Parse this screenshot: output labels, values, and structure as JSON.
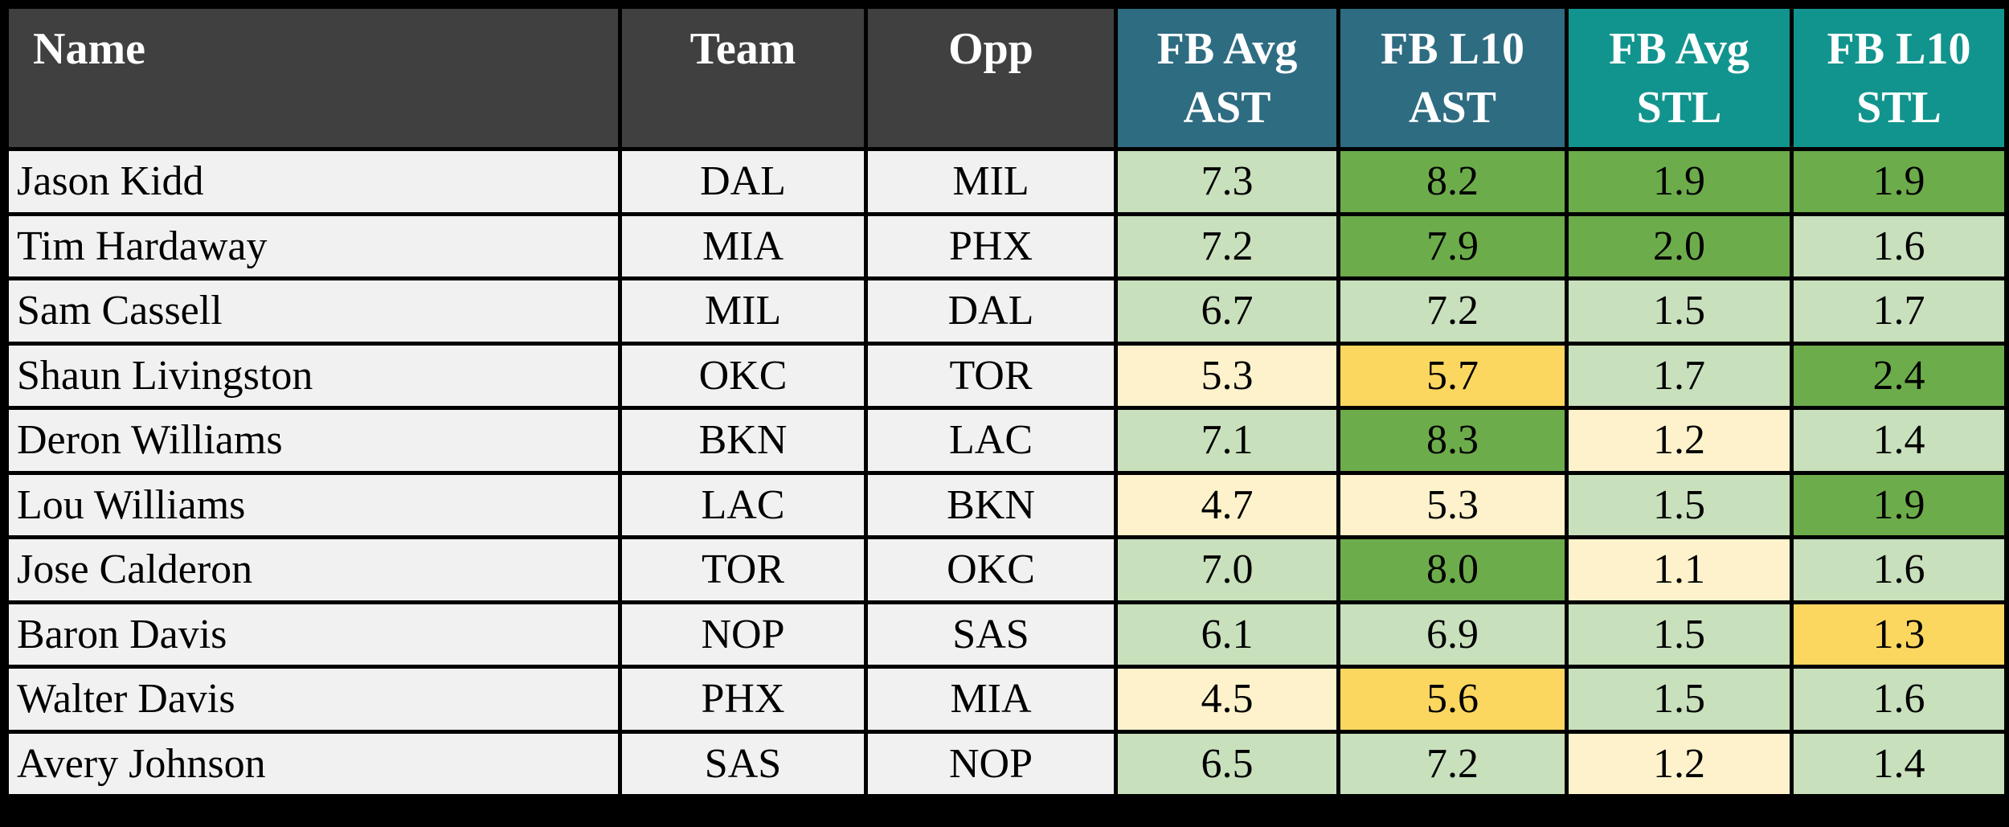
{
  "chart_data": {
    "type": "table",
    "columns": [
      {
        "key": "name",
        "label": "Name",
        "header_style": "dark"
      },
      {
        "key": "team",
        "label": "Team",
        "header_style": "dark"
      },
      {
        "key": "opp",
        "label": "Opp",
        "header_style": "dark"
      },
      {
        "key": "fb_avg_ast",
        "label": "FB Avg\nAST",
        "header_style": "ast"
      },
      {
        "key": "fb_l10_ast",
        "label": "FB L10\nAST",
        "header_style": "ast"
      },
      {
        "key": "fb_avg_stl",
        "label": "FB Avg\nSTL",
        "header_style": "stl"
      },
      {
        "key": "fb_l10_stl",
        "label": "FB L10\nSTL",
        "header_style": "stl"
      }
    ],
    "rows": [
      {
        "name": "Jason Kidd",
        "team": "DAL",
        "opp": "MIL",
        "stats": [
          {
            "value": "7.3",
            "tone": "light-green"
          },
          {
            "value": "8.2",
            "tone": "green"
          },
          {
            "value": "1.9",
            "tone": "green"
          },
          {
            "value": "1.9",
            "tone": "green"
          }
        ]
      },
      {
        "name": "Tim Hardaway",
        "team": "MIA",
        "opp": "PHX",
        "stats": [
          {
            "value": "7.2",
            "tone": "light-green"
          },
          {
            "value": "7.9",
            "tone": "green"
          },
          {
            "value": "2.0",
            "tone": "green"
          },
          {
            "value": "1.6",
            "tone": "light-green"
          }
        ]
      },
      {
        "name": "Sam Cassell",
        "team": "MIL",
        "opp": "DAL",
        "stats": [
          {
            "value": "6.7",
            "tone": "light-green"
          },
          {
            "value": "7.2",
            "tone": "light-green"
          },
          {
            "value": "1.5",
            "tone": "light-green"
          },
          {
            "value": "1.7",
            "tone": "light-green"
          }
        ]
      },
      {
        "name": "Shaun Livingston",
        "team": "OKC",
        "opp": "TOR",
        "stats": [
          {
            "value": "5.3",
            "tone": "cream"
          },
          {
            "value": "5.7",
            "tone": "gold"
          },
          {
            "value": "1.7",
            "tone": "light-green"
          },
          {
            "value": "2.4",
            "tone": "green"
          }
        ]
      },
      {
        "name": "Deron Williams",
        "team": "BKN",
        "opp": "LAC",
        "stats": [
          {
            "value": "7.1",
            "tone": "light-green"
          },
          {
            "value": "8.3",
            "tone": "green"
          },
          {
            "value": "1.2",
            "tone": "cream"
          },
          {
            "value": "1.4",
            "tone": "light-green"
          }
        ]
      },
      {
        "name": "Lou Williams",
        "team": "LAC",
        "opp": "BKN",
        "stats": [
          {
            "value": "4.7",
            "tone": "cream"
          },
          {
            "value": "5.3",
            "tone": "cream"
          },
          {
            "value": "1.5",
            "tone": "light-green"
          },
          {
            "value": "1.9",
            "tone": "green"
          }
        ]
      },
      {
        "name": "Jose Calderon",
        "team": "TOR",
        "opp": "OKC",
        "stats": [
          {
            "value": "7.0",
            "tone": "light-green"
          },
          {
            "value": "8.0",
            "tone": "green"
          },
          {
            "value": "1.1",
            "tone": "cream"
          },
          {
            "value": "1.6",
            "tone": "light-green"
          }
        ]
      },
      {
        "name": "Baron Davis",
        "team": "NOP",
        "opp": "SAS",
        "stats": [
          {
            "value": "6.1",
            "tone": "light-green"
          },
          {
            "value": "6.9",
            "tone": "light-green"
          },
          {
            "value": "1.5",
            "tone": "light-green"
          },
          {
            "value": "1.3",
            "tone": "gold"
          }
        ]
      },
      {
        "name": "Walter Davis",
        "team": "PHX",
        "opp": "MIA",
        "stats": [
          {
            "value": "4.5",
            "tone": "cream"
          },
          {
            "value": "5.6",
            "tone": "gold"
          },
          {
            "value": "1.5",
            "tone": "light-green"
          },
          {
            "value": "1.6",
            "tone": "light-green"
          }
        ]
      },
      {
        "name": "Avery Johnson",
        "team": "SAS",
        "opp": "NOP",
        "stats": [
          {
            "value": "6.5",
            "tone": "light-green"
          },
          {
            "value": "7.2",
            "tone": "light-green"
          },
          {
            "value": "1.2",
            "tone": "cream"
          },
          {
            "value": "1.4",
            "tone": "light-green"
          }
        ]
      }
    ],
    "legend_tones": {
      "light-green": "above-average value",
      "green": "strong value",
      "cream": "below-average value",
      "gold": "weak value"
    }
  },
  "colors": {
    "header_name_bg": "#404040",
    "header_ast_bg": "#2e6c82",
    "header_stl_bg": "#12948e",
    "header_text": "#ffffff",
    "row_bg": "#f2f1f1",
    "grid": "#000000",
    "tones": {
      "light-green": "#c8e0bc",
      "green": "#6dac4b",
      "cream": "#fdf2cb",
      "gold": "#fcd75f"
    }
  }
}
